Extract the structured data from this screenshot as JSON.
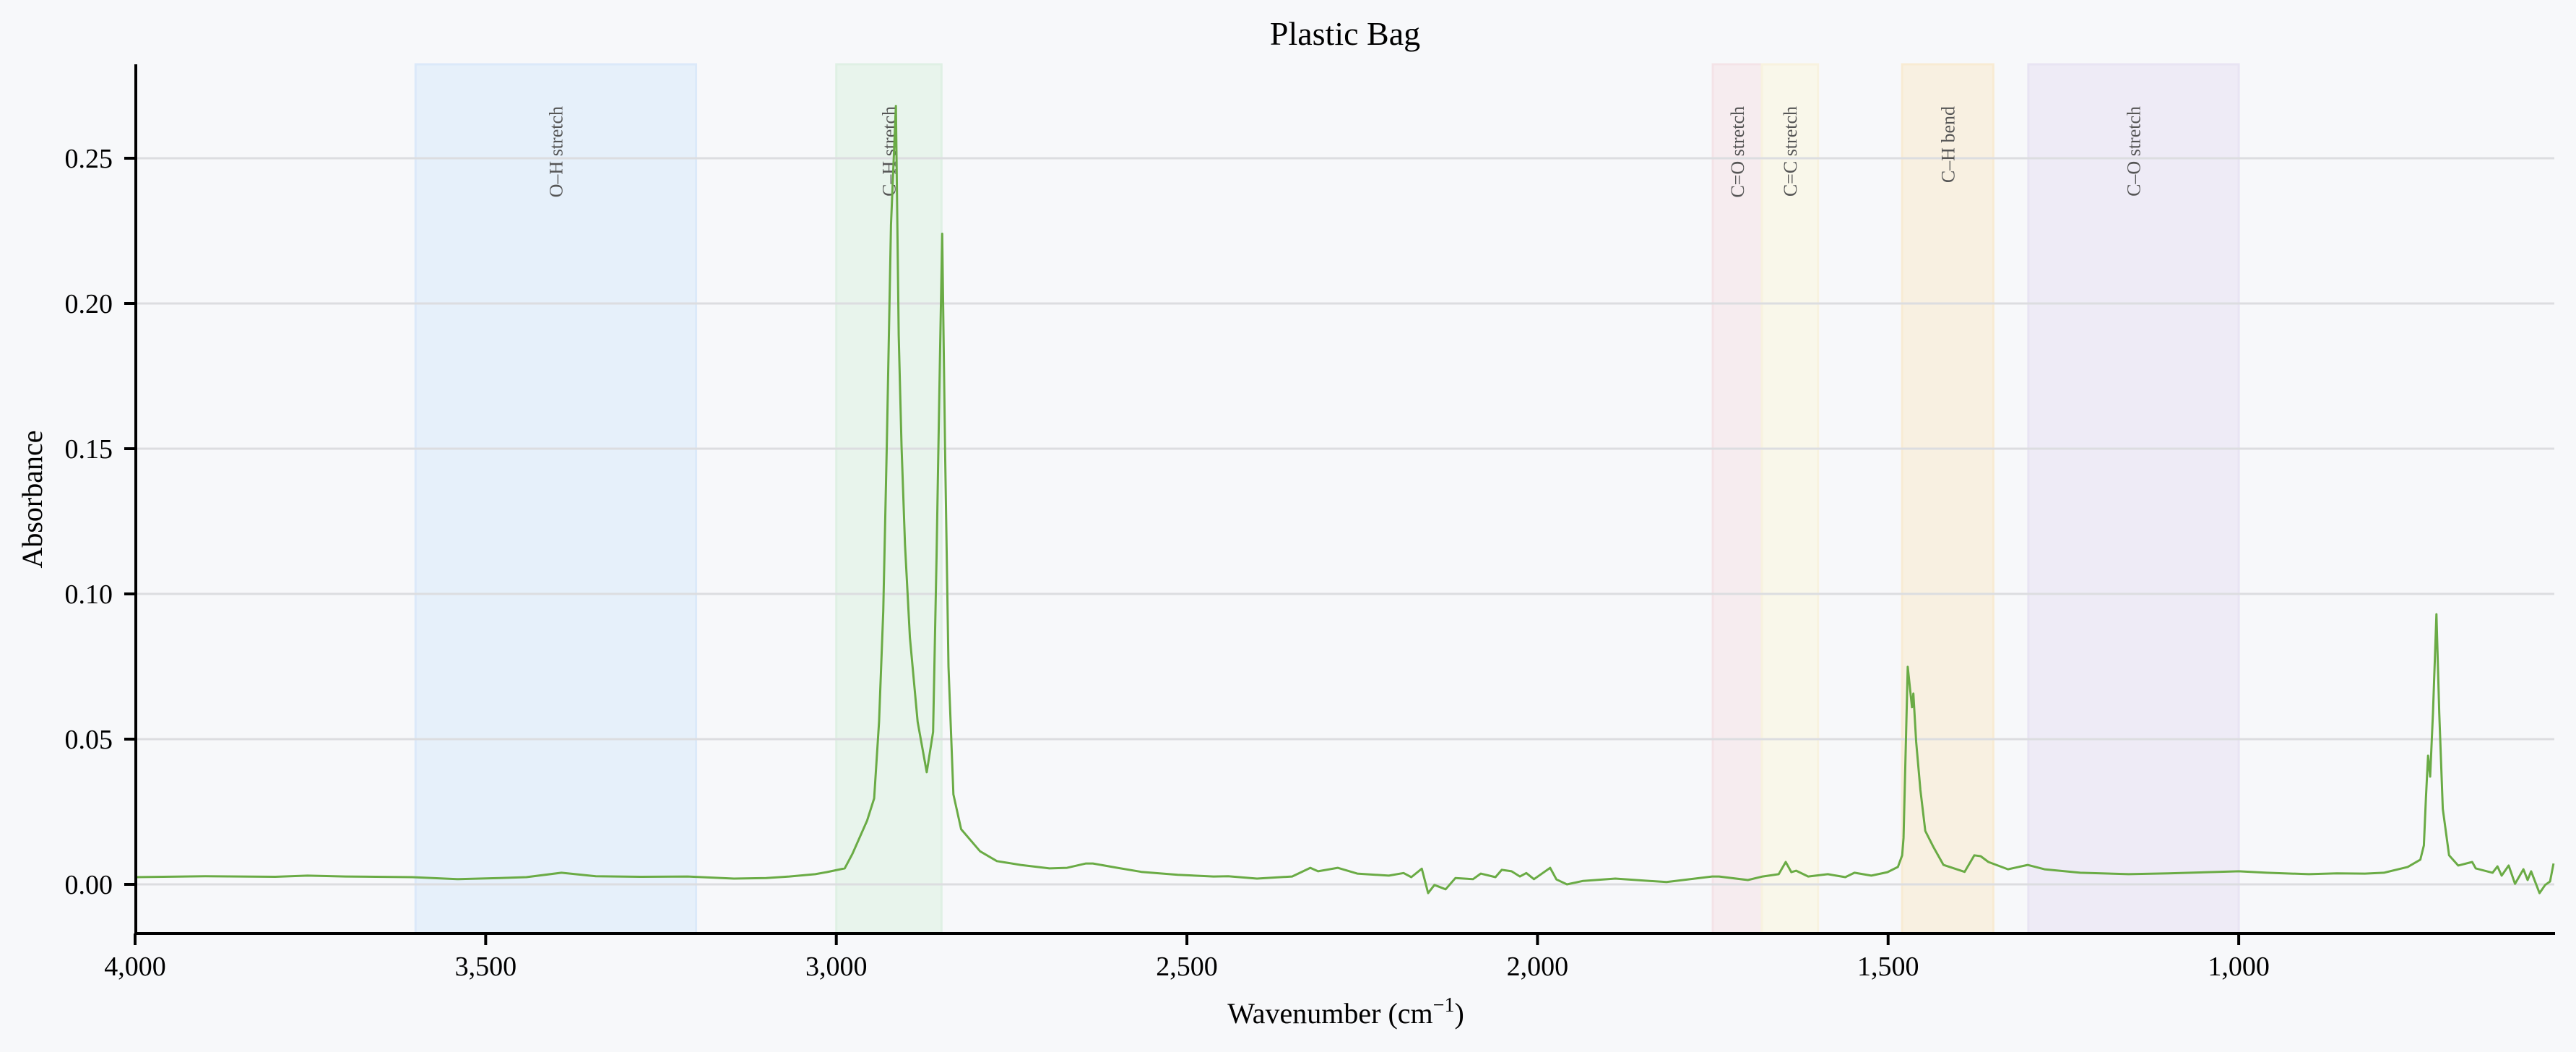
{
  "chart_data": {
    "type": "line",
    "title": "Plastic Bag",
    "xlabel": "Wavenumber (cm⁻¹)",
    "xlabel_main": "Wavenumber (cm",
    "xlabel_sup": "−1",
    "xlabel_close": ")",
    "ylabel": "Absorbance",
    "xlim": [
      4000,
      550
    ],
    "x_inverted": true,
    "ylim": [
      -0.017,
      0.282
    ],
    "grid": {
      "horizontal": true,
      "vertical": false
    },
    "legend": null,
    "x_ticks": [
      {
        "value": 4000,
        "label": "4,000"
      },
      {
        "value": 3500,
        "label": "3,500"
      },
      {
        "value": 3000,
        "label": "3,000"
      },
      {
        "value": 2500,
        "label": "2,500"
      },
      {
        "value": 2000,
        "label": "2,000"
      },
      {
        "value": 1500,
        "label": "1,500"
      },
      {
        "value": 1000,
        "label": "1,000"
      }
    ],
    "y_ticks": [
      {
        "value": 0.0,
        "label": "0.00"
      },
      {
        "value": 0.05,
        "label": "0.05"
      },
      {
        "value": 0.1,
        "label": "0.10"
      },
      {
        "value": 0.15,
        "label": "0.15"
      },
      {
        "value": 0.2,
        "label": "0.20"
      },
      {
        "value": 0.25,
        "label": "0.25"
      }
    ],
    "bands": [
      {
        "label": "O–H stretch",
        "from": 3600,
        "to": 3200,
        "color": "#e6f0fa",
        "edge": "#dbe9f9"
      },
      {
        "label": "C–H stretch",
        "from": 3000,
        "to": 2850,
        "color": "#e8f4ec",
        "edge": "#dff0e4"
      },
      {
        "label": "C=O stretch",
        "from": 1750,
        "to": 1680,
        "color": "#f6ecef",
        "edge": "#f4e3e7"
      },
      {
        "label": "C=C stretch",
        "from": 1680,
        "to": 1600,
        "color": "#f9f7ea",
        "edge": "#f8f2df"
      },
      {
        "label": "C–H bend",
        "from": 1480,
        "to": 1350,
        "color": "#f8f0e1",
        "edge": "#f8ebd3"
      },
      {
        "label": "C–O stretch",
        "from": 1300,
        "to": 1000,
        "color": "#eeebf6",
        "edge": "#e8e4f3"
      }
    ],
    "series": [
      {
        "name": "Plastic Bag",
        "color": "#6aab45",
        "x": [
          4000,
          3900,
          3800,
          3754,
          3700,
          3605,
          3541,
          3480,
          3442,
          3392,
          3343,
          3280,
          3212,
          3146,
          3100,
          3067,
          3030,
          3014,
          2988,
          2977,
          2956,
          2946,
          2939,
          2933,
          2928,
          2922,
          2915,
          2911,
          2907,
          2902,
          2895,
          2884,
          2871,
          2862,
          2857,
          2853,
          2849,
          2845,
          2840,
          2833,
          2822,
          2795,
          2771,
          2737,
          2696,
          2671,
          2644,
          2634,
          2599,
          2565,
          2513,
          2462,
          2441,
          2400,
          2350,
          2324,
          2313,
          2285,
          2257,
          2212,
          2191,
          2180,
          2165,
          2156,
          2147,
          2131,
          2117,
          2092,
          2081,
          2060,
          2051,
          2037,
          2025,
          2016,
          2005,
          1982,
          1973,
          1958,
          1935,
          1889,
          1816,
          1751,
          1741,
          1700,
          1679,
          1656,
          1646,
          1638,
          1631,
          1614,
          1586,
          1561,
          1548,
          1524,
          1501,
          1486,
          1480,
          1478,
          1472,
          1466,
          1464,
          1460,
          1454,
          1447,
          1435,
          1421,
          1391,
          1377,
          1368,
          1357,
          1329,
          1301,
          1277,
          1226,
          1157,
          1100,
          1030,
          1000,
          960,
          900,
          860,
          820,
          793,
          759,
          741,
          736,
          733,
          730,
          727,
          723,
          718,
          714,
          709,
          700,
          687,
          667,
          662,
          638,
          631,
          625,
          615,
          606,
          594,
          588,
          583,
          571,
          563,
          556,
          551
        ],
        "y": [
          0.0025,
          0.0028,
          0.0026,
          0.003,
          0.0027,
          0.0025,
          0.0018,
          0.0022,
          0.0025,
          0.004,
          0.0028,
          0.0026,
          0.0027,
          0.002,
          0.0022,
          0.0027,
          0.0035,
          0.0042,
          0.0055,
          0.0105,
          0.022,
          0.0296,
          0.056,
          0.094,
          0.151,
          0.227,
          0.268,
          0.189,
          0.151,
          0.117,
          0.085,
          0.056,
          0.0386,
          0.0525,
          0.113,
          0.17,
          0.224,
          0.151,
          0.075,
          0.031,
          0.019,
          0.0114,
          0.008,
          0.0067,
          0.0055,
          0.0057,
          0.0072,
          0.0072,
          0.0057,
          0.0043,
          0.0033,
          0.0027,
          0.0028,
          0.002,
          0.0027,
          0.0057,
          0.0045,
          0.0057,
          0.0037,
          0.003,
          0.0039,
          0.0025,
          0.0054,
          -0.003,
          -0.0002,
          -0.0017,
          0.0022,
          0.0018,
          0.0037,
          0.0025,
          0.005,
          0.0045,
          0.0027,
          0.0039,
          0.0018,
          0.0057,
          0.0017,
          0.0,
          0.0012,
          0.002,
          0.0008,
          0.0027,
          0.0027,
          0.0015,
          0.0027,
          0.0035,
          0.0077,
          0.0042,
          0.0047,
          0.0027,
          0.0035,
          0.0025,
          0.004,
          0.003,
          0.0042,
          0.006,
          0.01,
          0.016,
          0.0749,
          0.061,
          0.0657,
          0.049,
          0.0326,
          0.0184,
          0.0127,
          0.0067,
          0.0043,
          0.01,
          0.0097,
          0.0077,
          0.0052,
          0.0067,
          0.0052,
          0.004,
          0.0035,
          0.0038,
          0.0043,
          0.0045,
          0.004,
          0.0035,
          0.0038,
          0.0037,
          0.004,
          0.006,
          0.0085,
          0.0134,
          0.03,
          0.0443,
          0.0371,
          0.059,
          0.093,
          0.059,
          0.026,
          0.01,
          0.0065,
          0.0077,
          0.0055,
          0.004,
          0.0062,
          0.003,
          0.0065,
          0.0002,
          0.0052,
          0.0015,
          0.0045,
          -0.003,
          -0.0002,
          0.001,
          0.0072
        ]
      }
    ],
    "peaks": [
      {
        "x": 2915,
        "y": 0.268
      },
      {
        "x": 2849,
        "y": 0.224
      },
      {
        "x": 1472,
        "y": 0.075
      },
      {
        "x": 1464,
        "y": 0.066
      },
      {
        "x": 730,
        "y": 0.044
      },
      {
        "x": 718,
        "y": 0.093
      }
    ]
  }
}
